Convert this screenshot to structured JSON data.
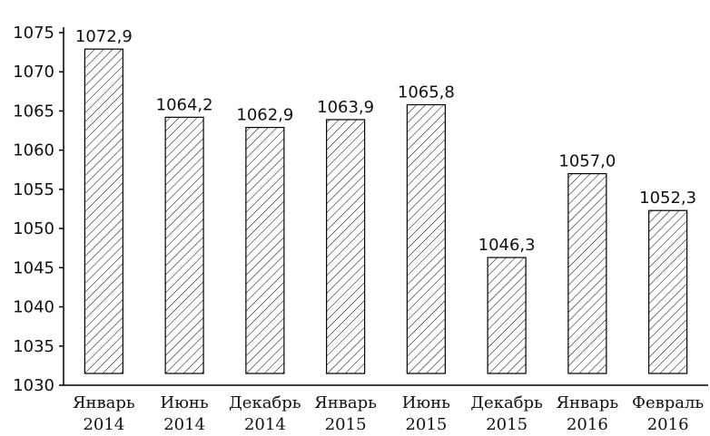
{
  "chart_data": {
    "type": "bar",
    "categories": [
      [
        "Январь",
        "2014"
      ],
      [
        "Июнь",
        "2014"
      ],
      [
        "Декабрь",
        "2014"
      ],
      [
        "Январь",
        "2015"
      ],
      [
        "Июнь",
        "2015"
      ],
      [
        "Декабрь",
        "2015"
      ],
      [
        "Январь",
        "2016"
      ],
      [
        "Февраль",
        "2016"
      ]
    ],
    "values": [
      1072.9,
      1064.2,
      1062.9,
      1063.9,
      1065.8,
      1046.3,
      1057.0,
      1052.3
    ],
    "data_labels": [
      "1072,9",
      "1064,2",
      "1062,9",
      "1063,9",
      "1065,8",
      "1046,3",
      "1057,0",
      "1052,3"
    ],
    "ylim": [
      1030,
      1075
    ],
    "yticks": [
      1030,
      1035,
      1040,
      1045,
      1050,
      1055,
      1060,
      1065,
      1070,
      1075
    ],
    "grid": false,
    "bar_fill": "hatched",
    "colors": {
      "stroke": "#000000",
      "background": "#ffffff"
    }
  }
}
